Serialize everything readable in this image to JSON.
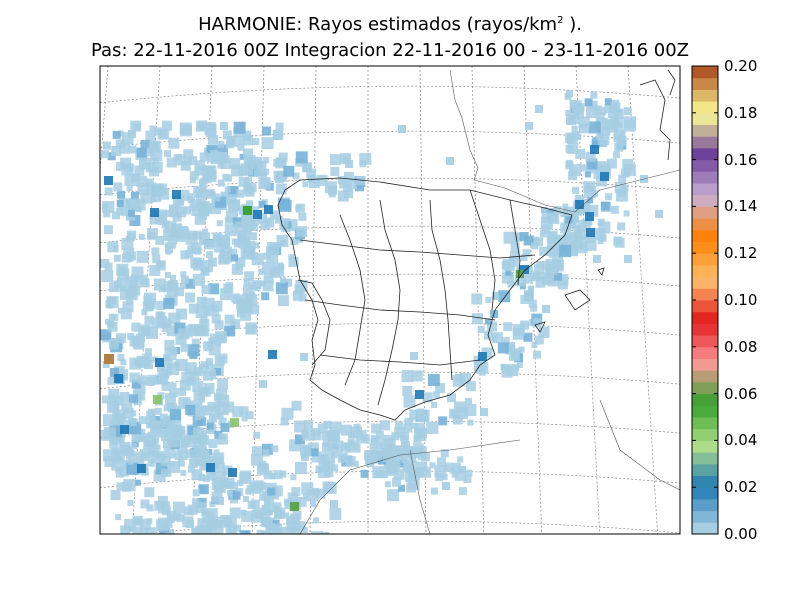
{
  "title": {
    "line1_prefix": "HARMONIE: Rayos estimados  (rayos/km",
    "line1_sup": "2",
    "line1_suffix": " ).",
    "line2": "Pas: 22-11-2016 00Z Integracion 22-11-2016 00 - 23-11-2016 00Z"
  },
  "colorbar": {
    "tick_labels": [
      "0.20",
      "0.18",
      "0.16",
      "0.14",
      "0.12",
      "0.10",
      "0.08",
      "0.06",
      "0.04",
      "0.02",
      "0.00"
    ],
    "range": [
      0.0,
      0.2
    ],
    "colors": [
      "#a6cee3",
      "#1f78b4",
      "#b2df8a",
      "#33a02c",
      "#fb9a99",
      "#e31a1c",
      "#fdbf6f",
      "#ff7f00",
      "#cab2d6",
      "#6a3d9a",
      "#ffff99",
      "#b15928"
    ]
  },
  "map": {
    "region": "Iberian Peninsula and surrounding Atlantic / western Mediterranean",
    "projection": "Lambert conformal",
    "graticule": "dashed",
    "dominant_value_range": [
      0.0,
      0.02
    ],
    "peak_locations": [
      "off west Galicia coast",
      "off Portugal coast",
      "Gulf of Cadiz",
      "Valencia coast",
      "Catalonia coast"
    ]
  }
}
